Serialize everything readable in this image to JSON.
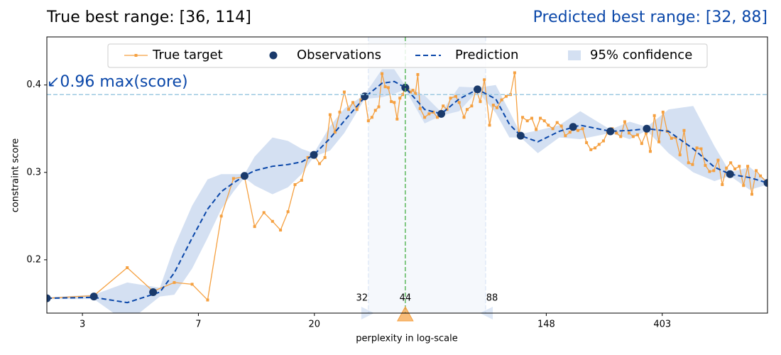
{
  "chart_data": {
    "type": "line",
    "title": "True best range: [36, 114]",
    "predicted_title": "Predicted best range: [32, 88]",
    "annotation": "↙0.96 max(score)",
    "xlabel": "perplexity in log-scale",
    "ylabel": "constraint score",
    "xscale": "log",
    "xlim": [
      2,
      1000
    ],
    "ylim": [
      0.139,
      0.455
    ],
    "xticks": [
      {
        "value": 2.718,
        "label": "3"
      },
      {
        "value": 7.389,
        "label": "7"
      },
      {
        "value": 20.09,
        "label": "20"
      },
      {
        "value": 148.4,
        "label": "148"
      },
      {
        "value": 403.4,
        "label": "403"
      }
    ],
    "yticks": [
      0.2,
      0.3,
      0.4
    ],
    "threshold": 0.389,
    "threshold_color": "#9ecae1",
    "predicted_range": [
      32,
      88
    ],
    "range_color": "#9db9e6",
    "best": 44,
    "best_color": "#5cb85c",
    "marker_color": "#f5a040",
    "legend": "top-center",
    "series": [
      {
        "name": "True target",
        "style": "line-markers",
        "color": "#f5a040",
        "x": [
          2,
          3,
          4,
          5,
          6,
          7,
          8,
          9,
          10,
          11,
          12,
          13,
          14,
          15,
          16,
          17,
          18,
          19,
          20,
          21,
          22,
          23,
          24,
          25,
          26,
          27,
          28,
          29,
          30,
          31,
          32,
          33,
          34,
          35,
          36,
          37,
          38,
          39,
          40,
          41,
          42,
          43,
          44,
          45,
          46,
          47,
          48,
          49,
          50,
          52,
          54,
          56,
          58,
          61,
          63,
          65,
          68,
          70,
          73,
          75,
          78,
          81,
          84,
          87,
          91,
          94,
          97,
          101,
          105,
          109,
          113,
          117,
          121,
          126,
          131,
          136,
          141,
          146,
          151,
          157,
          163,
          169,
          175,
          182,
          188,
          195,
          203,
          210,
          218,
          226,
          234,
          243,
          252,
          262,
          272,
          282,
          292,
          303,
          314,
          326,
          338,
          351,
          364,
          377,
          392,
          406,
          421,
          437,
          453,
          470,
          487,
          506,
          524,
          544,
          564,
          585,
          607,
          629,
          653,
          677,
          702,
          728,
          755,
          784,
          813,
          843,
          874,
          907,
          941,
          1000
        ],
        "values": [
          0.156,
          0.159,
          0.191,
          0.164,
          0.174,
          0.172,
          0.154,
          0.25,
          0.293,
          0.295,
          0.238,
          0.254,
          0.244,
          0.234,
          0.255,
          0.286,
          0.291,
          0.317,
          0.32,
          0.31,
          0.317,
          0.366,
          0.346,
          0.369,
          0.392,
          0.372,
          0.38,
          0.372,
          0.383,
          0.387,
          0.359,
          0.363,
          0.371,
          0.375,
          0.413,
          0.398,
          0.397,
          0.381,
          0.38,
          0.361,
          0.385,
          0.389,
          0.398,
          0.395,
          0.392,
          0.394,
          0.39,
          0.412,
          0.373,
          0.363,
          0.367,
          0.369,
          0.363,
          0.376,
          0.372,
          0.385,
          0.387,
          0.38,
          0.363,
          0.372,
          0.376,
          0.395,
          0.381,
          0.406,
          0.354,
          0.377,
          0.374,
          0.383,
          0.387,
          0.389,
          0.414,
          0.343,
          0.363,
          0.359,
          0.362,
          0.349,
          0.362,
          0.359,
          0.354,
          0.35,
          0.357,
          0.353,
          0.342,
          0.346,
          0.35,
          0.348,
          0.35,
          0.334,
          0.326,
          0.328,
          0.332,
          0.336,
          0.346,
          0.35,
          0.345,
          0.341,
          0.358,
          0.345,
          0.341,
          0.343,
          0.333,
          0.345,
          0.324,
          0.365,
          0.335,
          0.369,
          0.347,
          0.339,
          0.34,
          0.32,
          0.348,
          0.311,
          0.309,
          0.328,
          0.327,
          0.308,
          0.301,
          0.302,
          0.314,
          0.286,
          0.305,
          0.311,
          0.304,
          0.307,
          0.285,
          0.307,
          0.275,
          0.302,
          0.296,
          0.288
        ]
      },
      {
        "name": "Observations",
        "style": "markers",
        "color": "#1a3a6b",
        "x": [
          2,
          3,
          5,
          11,
          20,
          31,
          44,
          60,
          82,
          119,
          187,
          258,
          353,
          724,
          1000
        ],
        "values": [
          0.156,
          0.158,
          0.163,
          0.296,
          0.32,
          0.387,
          0.397,
          0.367,
          0.395,
          0.342,
          0.352,
          0.347,
          0.35,
          0.298,
          0.288
        ]
      },
      {
        "name": "Prediction",
        "style": "dashed",
        "color": "#0a47a9",
        "x": [
          2,
          3,
          4,
          5.3,
          6,
          7,
          8,
          9,
          10,
          11,
          12,
          14,
          16,
          18,
          20,
          23,
          26,
          31,
          36,
          40,
          44,
          52,
          60,
          70,
          82,
          96,
          108,
          119,
          138,
          166,
          199,
          258,
          305,
          353,
          426,
          527,
          633,
          724,
          858,
          1000
        ],
        "values": [
          0.156,
          0.157,
          0.151,
          0.163,
          0.185,
          0.225,
          0.258,
          0.278,
          0.288,
          0.296,
          0.302,
          0.307,
          0.309,
          0.312,
          0.32,
          0.339,
          0.359,
          0.386,
          0.402,
          0.404,
          0.397,
          0.372,
          0.367,
          0.384,
          0.395,
          0.384,
          0.355,
          0.342,
          0.335,
          0.347,
          0.354,
          0.347,
          0.348,
          0.35,
          0.347,
          0.327,
          0.306,
          0.298,
          0.294,
          0.288
        ]
      },
      {
        "name": "95% confidence",
        "style": "band",
        "color": "#d4e0f2",
        "x": [
          2,
          3,
          4,
          5.3,
          6,
          7,
          8,
          9,
          10,
          11,
          12,
          14,
          16,
          18,
          20,
          23,
          26,
          31,
          36,
          40,
          44,
          52,
          60,
          70,
          82,
          96,
          108,
          119,
          138,
          166,
          199,
          258,
          305,
          353,
          426,
          527,
          633,
          724,
          858,
          1000
        ],
        "lower": [
          0.155,
          0.155,
          0.128,
          0.158,
          0.16,
          0.19,
          0.225,
          0.258,
          0.278,
          0.294,
          0.285,
          0.275,
          0.283,
          0.298,
          0.318,
          0.325,
          0.345,
          0.384,
          0.386,
          0.39,
          0.395,
          0.356,
          0.365,
          0.37,
          0.393,
          0.368,
          0.34,
          0.34,
          0.322,
          0.34,
          0.338,
          0.345,
          0.338,
          0.348,
          0.322,
          0.3,
          0.29,
          0.296,
          0.28,
          0.286
        ],
        "upper": [
          0.157,
          0.16,
          0.174,
          0.168,
          0.215,
          0.262,
          0.292,
          0.298,
          0.298,
          0.298,
          0.318,
          0.34,
          0.336,
          0.327,
          0.322,
          0.353,
          0.373,
          0.389,
          0.418,
          0.418,
          0.399,
          0.388,
          0.369,
          0.398,
          0.397,
          0.4,
          0.37,
          0.344,
          0.348,
          0.354,
          0.37,
          0.349,
          0.358,
          0.352,
          0.372,
          0.376,
          0.33,
          0.3,
          0.306,
          0.29
        ]
      }
    ]
  }
}
